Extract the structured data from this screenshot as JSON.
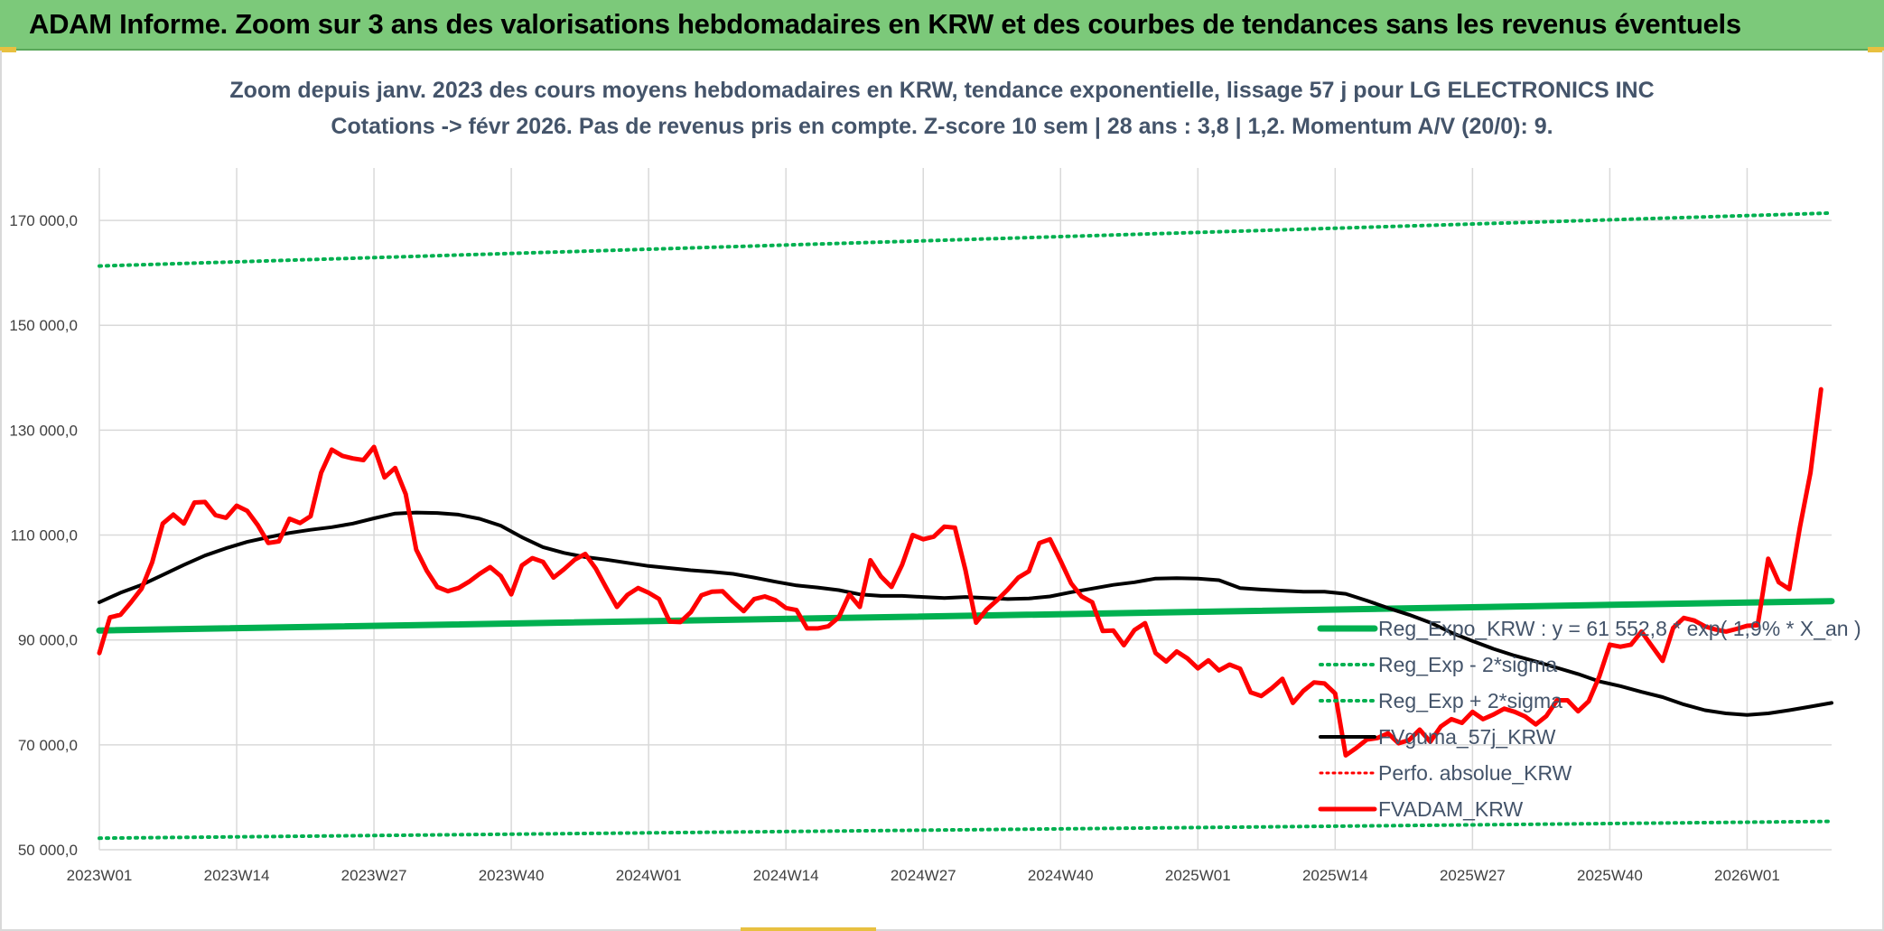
{
  "banner": {
    "title": "ADAM Informe. Zoom sur 3 ans des valorisations hebdomadaires en KRW et des courbes de tendances sans les revenus éventuels"
  },
  "colors": {
    "banner": "#7cc97a",
    "reg_expo": "#00b050",
    "sigma": "#00b050",
    "fvguma": "#000000",
    "perfo": "#ff0000",
    "fvadam": "#ff0000",
    "grid": "#d9d9d9",
    "title": "#44546a"
  },
  "chart_data": {
    "type": "line",
    "title_line1": "Zoom depuis janv. 2023 des cours moyens hebdomadaires en KRW, tendance exponentielle, lissage 57 j pour LG ELECTRONICS INC",
    "title_line2": "Cotations -> févr 2026. Pas de revenus pris en compte. Z-score 10 sem | 28 ans : 3,8 | 1,2. Momentum A/V (20/0): 9.",
    "xlabel": "",
    "ylabel": "",
    "x_ticks": [
      "2023W01",
      "2023W14",
      "2023W27",
      "2023W40",
      "2024W01",
      "2024W14",
      "2024W27",
      "2024W40",
      "2025W01",
      "2025W14",
      "2025W27",
      "2025W40",
      "2026W01"
    ],
    "x_tick_week_index": [
      0,
      13,
      26,
      39,
      52,
      65,
      78,
      91,
      104,
      117,
      130,
      143,
      156
    ],
    "x_range_weeks": [
      0,
      164
    ],
    "y_ticks": [
      "50 000,0",
      "70 000,0",
      "90 000,0",
      "110 000,0",
      "130 000,0",
      "150 000,0",
      "170 000,0"
    ],
    "y_tick_values": [
      50000,
      70000,
      90000,
      110000,
      130000,
      150000,
      170000
    ],
    "ylim": [
      50000,
      180000
    ],
    "grid": true,
    "legend_position": "right",
    "series": [
      {
        "name": "Reg_Expo_KRW : y = 61 552,8 * exp( 1,9% *  X_an )",
        "style": "solid-thick",
        "points": [
          [
            0,
            91800
          ],
          [
            164,
            97400
          ]
        ]
      },
      {
        "name": "Reg_Exp - 2*sigma",
        "style": "dotted",
        "points": [
          [
            0,
            52200
          ],
          [
            164,
            55400
          ]
        ]
      },
      {
        "name": "Reg_Exp + 2*sigma",
        "style": "dotted",
        "points": [
          [
            0,
            161300
          ],
          [
            164,
            171400
          ]
        ]
      },
      {
        "name": "FVguma_57j_KRW",
        "style": "solid",
        "points": [
          [
            0,
            97200
          ],
          [
            2,
            99000
          ],
          [
            4,
            100500
          ],
          [
            6,
            102400
          ],
          [
            8,
            104300
          ],
          [
            10,
            106100
          ],
          [
            12,
            107500
          ],
          [
            14,
            108700
          ],
          [
            16,
            109600
          ],
          [
            18,
            110400
          ],
          [
            20,
            111000
          ],
          [
            22,
            111500
          ],
          [
            24,
            112200
          ],
          [
            26,
            113200
          ],
          [
            28,
            114100
          ],
          [
            30,
            114300
          ],
          [
            32,
            114200
          ],
          [
            34,
            113900
          ],
          [
            36,
            113100
          ],
          [
            38,
            111800
          ],
          [
            40,
            109600
          ],
          [
            42,
            107700
          ],
          [
            44,
            106600
          ],
          [
            46,
            105800
          ],
          [
            48,
            105300
          ],
          [
            50,
            104700
          ],
          [
            52,
            104100
          ],
          [
            54,
            103700
          ],
          [
            56,
            103300
          ],
          [
            58,
            103000
          ],
          [
            60,
            102600
          ],
          [
            62,
            101900
          ],
          [
            64,
            101100
          ],
          [
            66,
            100400
          ],
          [
            68,
            100000
          ],
          [
            70,
            99500
          ],
          [
            72,
            98700
          ],
          [
            74,
            98400
          ],
          [
            76,
            98400
          ],
          [
            78,
            98200
          ],
          [
            80,
            98000
          ],
          [
            82,
            98200
          ],
          [
            84,
            98000
          ],
          [
            86,
            97800
          ],
          [
            88,
            97900
          ],
          [
            90,
            98300
          ],
          [
            92,
            99100
          ],
          [
            94,
            99800
          ],
          [
            96,
            100500
          ],
          [
            98,
            101000
          ],
          [
            100,
            101700
          ],
          [
            102,
            101800
          ],
          [
            104,
            101700
          ],
          [
            106,
            101400
          ],
          [
            108,
            99900
          ],
          [
            110,
            99600
          ],
          [
            112,
            99400
          ],
          [
            114,
            99200
          ],
          [
            116,
            99200
          ],
          [
            118,
            98800
          ],
          [
            120,
            97500
          ],
          [
            122,
            96100
          ],
          [
            124,
            94800
          ],
          [
            126,
            93300
          ],
          [
            128,
            91400
          ],
          [
            130,
            89800
          ],
          [
            132,
            88300
          ],
          [
            134,
            87000
          ],
          [
            136,
            85900
          ],
          [
            138,
            84700
          ],
          [
            140,
            83500
          ],
          [
            142,
            82100
          ],
          [
            144,
            81200
          ],
          [
            146,
            80100
          ],
          [
            148,
            79100
          ],
          [
            150,
            77700
          ],
          [
            152,
            76600
          ],
          [
            154,
            76000
          ],
          [
            156,
            75700
          ],
          [
            158,
            76000
          ],
          [
            160,
            76600
          ],
          [
            162,
            77300
          ],
          [
            164,
            78000
          ]
        ]
      },
      {
        "name": "Perfo. absolue_KRW",
        "style": "dotted",
        "points": []
      },
      {
        "name": "FVADAM_KRW",
        "style": "solid-thick",
        "points": [
          [
            0,
            87500
          ],
          [
            1,
            94300
          ],
          [
            2,
            94800
          ],
          [
            3,
            97200
          ],
          [
            4,
            99800
          ],
          [
            5,
            104800
          ],
          [
            6,
            112200
          ],
          [
            7,
            113900
          ],
          [
            8,
            112200
          ],
          [
            9,
            116200
          ],
          [
            10,
            116300
          ],
          [
            11,
            113800
          ],
          [
            12,
            113300
          ],
          [
            13,
            115600
          ],
          [
            14,
            114600
          ],
          [
            15,
            111900
          ],
          [
            16,
            108500
          ],
          [
            17,
            108800
          ],
          [
            18,
            113100
          ],
          [
            19,
            112300
          ],
          [
            20,
            113600
          ],
          [
            21,
            121900
          ],
          [
            22,
            126300
          ],
          [
            23,
            125100
          ],
          [
            24,
            124600
          ],
          [
            25,
            124300
          ],
          [
            26,
            126800
          ],
          [
            27,
            121000
          ],
          [
            28,
            122800
          ],
          [
            29,
            117800
          ],
          [
            30,
            107200
          ],
          [
            31,
            103200
          ],
          [
            32,
            100100
          ],
          [
            33,
            99300
          ],
          [
            34,
            99900
          ],
          [
            35,
            101100
          ],
          [
            36,
            102600
          ],
          [
            37,
            103900
          ],
          [
            38,
            102200
          ],
          [
            39,
            98700
          ],
          [
            40,
            104200
          ],
          [
            41,
            105600
          ],
          [
            42,
            104900
          ],
          [
            43,
            101900
          ],
          [
            44,
            103500
          ],
          [
            45,
            105300
          ],
          [
            46,
            106400
          ],
          [
            47,
            103600
          ],
          [
            48,
            99900
          ],
          [
            49,
            96300
          ],
          [
            50,
            98600
          ],
          [
            51,
            99900
          ],
          [
            52,
            99000
          ],
          [
            53,
            97800
          ],
          [
            54,
            93500
          ],
          [
            55,
            93400
          ],
          [
            56,
            95300
          ],
          [
            57,
            98500
          ],
          [
            58,
            99200
          ],
          [
            59,
            99300
          ],
          [
            60,
            97300
          ],
          [
            61,
            95500
          ],
          [
            62,
            97800
          ],
          [
            63,
            98300
          ],
          [
            64,
            97600
          ],
          [
            65,
            96100
          ],
          [
            66,
            95700
          ],
          [
            67,
            92200
          ],
          [
            68,
            92200
          ],
          [
            69,
            92600
          ],
          [
            70,
            94300
          ],
          [
            71,
            98700
          ],
          [
            72,
            96300
          ],
          [
            73,
            105200
          ],
          [
            74,
            102100
          ],
          [
            75,
            100100
          ],
          [
            76,
            104300
          ],
          [
            77,
            110000
          ],
          [
            78,
            109200
          ],
          [
            79,
            109700
          ],
          [
            80,
            111600
          ],
          [
            81,
            111400
          ],
          [
            82,
            103300
          ],
          [
            83,
            93300
          ],
          [
            84,
            95800
          ],
          [
            85,
            97600
          ],
          [
            86,
            99600
          ],
          [
            87,
            101900
          ],
          [
            88,
            103100
          ],
          [
            89,
            108500
          ],
          [
            90,
            109200
          ],
          [
            91,
            105100
          ],
          [
            92,
            100800
          ],
          [
            93,
            98300
          ],
          [
            94,
            97200
          ],
          [
            95,
            91700
          ],
          [
            96,
            91800
          ],
          [
            97,
            89000
          ],
          [
            98,
            91900
          ],
          [
            99,
            93200
          ],
          [
            100,
            87500
          ],
          [
            101,
            85900
          ],
          [
            102,
            87800
          ],
          [
            103,
            86500
          ],
          [
            104,
            84600
          ],
          [
            105,
            86100
          ],
          [
            106,
            84200
          ],
          [
            107,
            85300
          ],
          [
            108,
            84500
          ],
          [
            109,
            80000
          ],
          [
            110,
            79300
          ],
          [
            111,
            80800
          ],
          [
            112,
            82600
          ],
          [
            113,
            78000
          ],
          [
            114,
            80300
          ],
          [
            115,
            81900
          ],
          [
            116,
            81700
          ],
          [
            117,
            79800
          ],
          [
            118,
            68000
          ],
          [
            119,
            69400
          ],
          [
            120,
            71000
          ],
          [
            121,
            71300
          ],
          [
            122,
            72200
          ],
          [
            123,
            70300
          ],
          [
            124,
            70900
          ],
          [
            125,
            72900
          ],
          [
            126,
            70600
          ],
          [
            127,
            73500
          ],
          [
            128,
            74900
          ],
          [
            129,
            74200
          ],
          [
            130,
            76300
          ],
          [
            131,
            74900
          ],
          [
            132,
            75800
          ],
          [
            133,
            76900
          ],
          [
            134,
            76300
          ],
          [
            135,
            75400
          ],
          [
            136,
            73900
          ],
          [
            137,
            75500
          ],
          [
            138,
            78500
          ],
          [
            139,
            78500
          ],
          [
            140,
            76400
          ],
          [
            141,
            78300
          ],
          [
            142,
            83000
          ],
          [
            143,
            89100
          ],
          [
            144,
            88700
          ],
          [
            145,
            89100
          ],
          [
            146,
            91600
          ],
          [
            147,
            88800
          ],
          [
            148,
            86000
          ],
          [
            149,
            92300
          ],
          [
            150,
            94200
          ],
          [
            151,
            93700
          ],
          [
            152,
            92600
          ],
          [
            153,
            92000
          ],
          [
            154,
            91600
          ],
          [
            155,
            92100
          ],
          [
            156,
            92700
          ],
          [
            157,
            92800
          ],
          [
            158,
            105500
          ],
          [
            159,
            101000
          ],
          [
            160,
            99700
          ],
          [
            161,
            111500
          ],
          [
            162,
            121900
          ],
          [
            163,
            137800
          ]
        ]
      }
    ]
  }
}
